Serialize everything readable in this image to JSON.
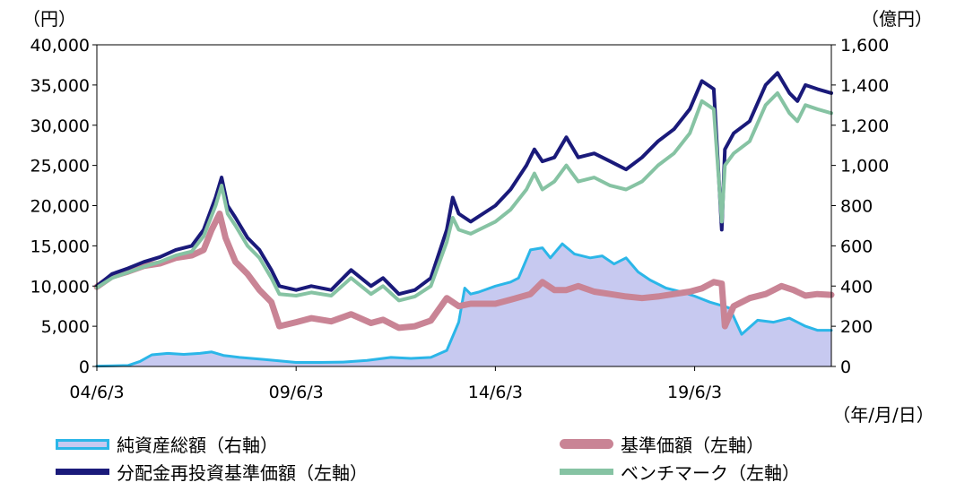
{
  "chart_data": {
    "type": "line",
    "left_axis": {
      "unit_label": "（円）",
      "ticks": [
        "0",
        "5,000",
        "10,000",
        "15,000",
        "20,000",
        "25,000",
        "30,000",
        "35,000",
        "40,000"
      ],
      "range": [
        0,
        40000
      ]
    },
    "right_axis": {
      "unit_label": "（億円）",
      "ticks": [
        "0",
        "200",
        "400",
        "600",
        "800",
        "1,000",
        "1,200",
        "1,400",
        "1,600"
      ],
      "range": [
        0,
        1600
      ]
    },
    "x_axis": {
      "ticks": [
        "04/6/3",
        "09/6/3",
        "14/6/3",
        "19/6/3"
      ],
      "tick_years": [
        2004.42,
        2009.42,
        2014.42,
        2019.42
      ],
      "range": [
        2004.42,
        2022.85
      ],
      "unit_label": "（年/月/日）"
    },
    "series": [
      {
        "name": "純資産総額（右軸）",
        "axis": "right",
        "style": "area",
        "x": [
          2004.42,
          2005.2,
          2005.5,
          2005.8,
          2006.2,
          2006.6,
          2007.0,
          2007.3,
          2007.6,
          2008.0,
          2008.6,
          2009.0,
          2009.42,
          2010.0,
          2010.6,
          2011.2,
          2011.8,
          2012.3,
          2012.8,
          2013.2,
          2013.5,
          2013.65,
          2013.8,
          2014.0,
          2014.42,
          2014.8,
          2015.0,
          2015.3,
          2015.6,
          2015.8,
          2016.1,
          2016.4,
          2016.8,
          2017.1,
          2017.4,
          2017.7,
          2018.0,
          2018.3,
          2018.7,
          2019.1,
          2019.42,
          2019.8,
          2020.15,
          2020.3,
          2020.6,
          2021.0,
          2021.4,
          2021.8,
          2022.2,
          2022.5,
          2022.85
        ],
        "values": [
          2,
          5,
          25,
          58,
          65,
          60,
          65,
          72,
          55,
          45,
          35,
          28,
          20,
          20,
          22,
          30,
          45,
          40,
          45,
          80,
          220,
          390,
          360,
          370,
          400,
          420,
          440,
          580,
          590,
          540,
          610,
          560,
          540,
          550,
          510,
          540,
          470,
          430,
          390,
          370,
          350,
          320,
          300,
          290,
          160,
          230,
          220,
          240,
          200,
          180,
          180
        ]
      },
      {
        "name": "基準価額（左軸）",
        "axis": "left",
        "style": "line",
        "x": [
          2004.42,
          2004.8,
          2005.2,
          2005.6,
          2006.0,
          2006.4,
          2006.8,
          2007.1,
          2007.3,
          2007.5,
          2007.65,
          2007.9,
          2008.2,
          2008.5,
          2008.8,
          2009.0,
          2009.42,
          2009.8,
          2010.3,
          2010.8,
          2011.3,
          2011.6,
          2012.0,
          2012.4,
          2012.8,
          2013.2,
          2013.35,
          2013.5,
          2013.8,
          2014.42,
          2014.8,
          2015.3,
          2015.6,
          2015.9,
          2016.2,
          2016.5,
          2016.9,
          2017.3,
          2017.7,
          2018.1,
          2018.5,
          2018.9,
          2019.3,
          2019.6,
          2019.9,
          2020.1,
          2020.18,
          2020.4,
          2020.8,
          2021.2,
          2021.6,
          2021.9,
          2022.2,
          2022.5,
          2022.85
        ],
        "values": [
          9900,
          11200,
          11800,
          12500,
          12800,
          13500,
          13800,
          14500,
          17000,
          19000,
          16000,
          13000,
          11500,
          9500,
          8000,
          5000,
          5500,
          6000,
          5600,
          6500,
          5400,
          5800,
          4800,
          5000,
          5700,
          8500,
          8000,
          7500,
          7800,
          7800,
          8300,
          9000,
          10500,
          9500,
          9500,
          10000,
          9300,
          9000,
          8700,
          8500,
          8700,
          9000,
          9300,
          9700,
          10500,
          10300,
          5000,
          7500,
          8500,
          9000,
          10000,
          9500,
          8800,
          9000,
          8900
        ]
      },
      {
        "name": "分配金再投資基準価額（左軸）",
        "axis": "left",
        "style": "line",
        "x": [
          2004.42,
          2004.8,
          2005.2,
          2005.6,
          2006.0,
          2006.4,
          2006.8,
          2007.1,
          2007.4,
          2007.55,
          2007.7,
          2007.9,
          2008.2,
          2008.5,
          2008.8,
          2009.0,
          2009.42,
          2009.8,
          2010.3,
          2010.8,
          2011.3,
          2011.6,
          2012.0,
          2012.4,
          2012.8,
          2013.2,
          2013.35,
          2013.5,
          2013.8,
          2014.42,
          2014.8,
          2015.2,
          2015.4,
          2015.6,
          2015.9,
          2016.2,
          2016.5,
          2016.9,
          2017.3,
          2017.7,
          2018.1,
          2018.5,
          2018.9,
          2019.3,
          2019.6,
          2019.9,
          2020.1,
          2020.18,
          2020.4,
          2020.8,
          2021.2,
          2021.5,
          2021.8,
          2022.0,
          2022.2,
          2022.5,
          2022.85
        ],
        "values": [
          10000,
          11500,
          12200,
          13000,
          13600,
          14500,
          15000,
          17000,
          21000,
          23500,
          20000,
          18500,
          16000,
          14500,
          12000,
          10000,
          9500,
          10000,
          9500,
          12000,
          10000,
          11000,
          9000,
          9500,
          11000,
          17000,
          21000,
          19000,
          18000,
          20000,
          22000,
          25000,
          27000,
          25500,
          26000,
          28500,
          26000,
          26500,
          25500,
          24500,
          26000,
          28000,
          29500,
          32000,
          35500,
          34500,
          17000,
          27000,
          29000,
          30500,
          35000,
          36500,
          34000,
          33000,
          35000,
          34500,
          34000
        ]
      },
      {
        "name": "ベンチマーク（左軸）",
        "axis": "left",
        "style": "line",
        "x": [
          2004.42,
          2004.8,
          2005.2,
          2005.6,
          2006.0,
          2006.4,
          2006.8,
          2007.1,
          2007.4,
          2007.55,
          2007.7,
          2007.9,
          2008.2,
          2008.5,
          2008.8,
          2009.0,
          2009.42,
          2009.8,
          2010.3,
          2010.8,
          2011.3,
          2011.6,
          2012.0,
          2012.4,
          2012.8,
          2013.2,
          2013.35,
          2013.5,
          2013.8,
          2014.42,
          2014.8,
          2015.2,
          2015.4,
          2015.6,
          2015.9,
          2016.2,
          2016.5,
          2016.9,
          2017.3,
          2017.7,
          2018.1,
          2018.5,
          2018.9,
          2019.3,
          2019.6,
          2019.9,
          2020.1,
          2020.18,
          2020.4,
          2020.8,
          2021.2,
          2021.5,
          2021.8,
          2022.0,
          2022.2,
          2022.5,
          2022.85
        ],
        "values": [
          9800,
          11000,
          11700,
          12400,
          13000,
          13800,
          14300,
          16200,
          20000,
          22500,
          19000,
          17500,
          15000,
          13500,
          11000,
          9000,
          8800,
          9200,
          8800,
          11000,
          9000,
          10000,
          8200,
          8700,
          10000,
          15500,
          18500,
          17000,
          16500,
          18000,
          19500,
          22000,
          24000,
          22000,
          23000,
          25000,
          23000,
          23500,
          22500,
          22000,
          23000,
          25000,
          26500,
          29000,
          33000,
          32000,
          18000,
          25000,
          26500,
          28000,
          32500,
          34000,
          31500,
          30500,
          32500,
          32000,
          31500
        ]
      }
    ],
    "colors": {
      "area_fill": "#c7c9f0",
      "area_line": "#2bb6e8",
      "kijun": "#c98495",
      "bunpai": "#1a1a7a",
      "bench": "#86c3a3",
      "frame": "#000000"
    },
    "grid": false,
    "legend": {
      "placement": "bottom",
      "items": [
        "純資産総額（右軸）",
        "基準価額（左軸）",
        "分配金再投資基準価額（左軸）",
        "ベンチマーク（左軸）"
      ]
    }
  }
}
